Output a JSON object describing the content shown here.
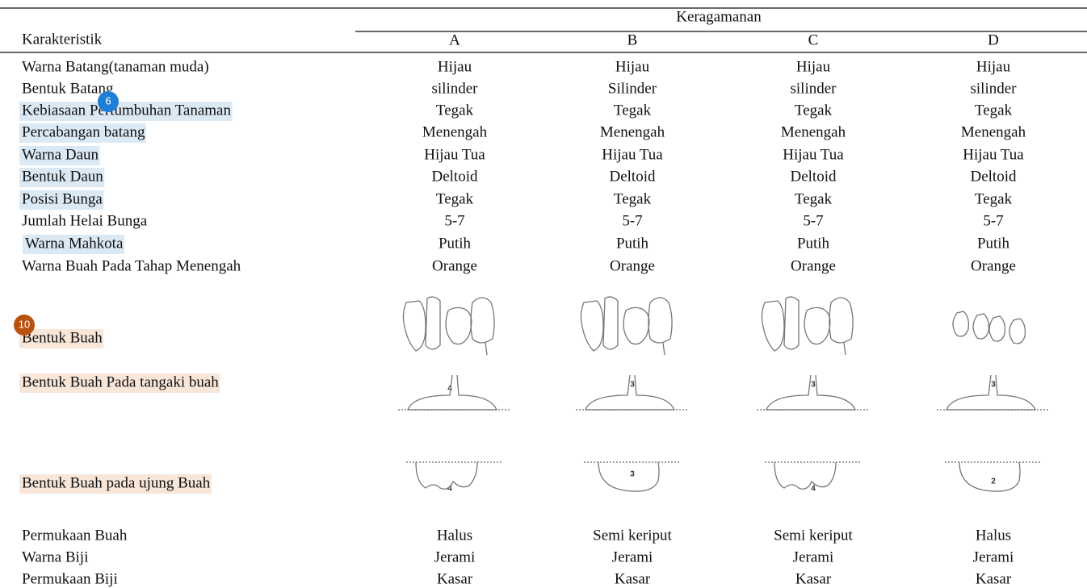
{
  "header": {
    "group": "Keragamanan",
    "label": "Karakteristik",
    "columns": [
      "A",
      "B",
      "C",
      "D"
    ]
  },
  "table": {
    "rows": [
      {
        "label": "Warna Batang(tanaman muda)",
        "cells": [
          "Hijau",
          "Hijau",
          "Hijau",
          "Hijau"
        ]
      },
      {
        "label": "Bentuk Batang",
        "cells": [
          "silinder",
          "Silinder",
          "silinder",
          "silinder"
        ]
      },
      {
        "label": "Kebiasaan Pertumbuhan Tanaman",
        "cells": [
          "Tegak",
          "Tegak",
          "Tegak",
          "Tegak"
        ]
      },
      {
        "label": "Percabangan batang",
        "cells": [
          "Menengah",
          "Menengah",
          "Menengah",
          "Menengah"
        ]
      },
      {
        "label": "Warna Daun",
        "cells": [
          "Hijau Tua",
          "Hijau Tua",
          "Hijau Tua",
          "Hijau Tua"
        ]
      },
      {
        "label": "Bentuk Daun",
        "cells": [
          "Deltoid",
          "Deltoid",
          "Deltoid",
          "Deltoid"
        ]
      },
      {
        "label": "Posisi Bunga",
        "cells": [
          "Tegak",
          "Tegak",
          "Tegak",
          "Tegak"
        ]
      },
      {
        "label": "Jumlah Helai Bunga",
        "cells": [
          "5-7",
          "5-7",
          "5-7",
          "5-7"
        ]
      },
      {
        "label": "Warna Mahkota",
        "cells": [
          "Putih",
          "Putih",
          "Putih",
          "Putih"
        ]
      },
      {
        "label": "Warna Buah Pada Tahap Menengah",
        "cells": [
          "Orange",
          "Orange",
          "Orange",
          "Orange"
        ]
      },
      {
        "label": "Bentuk Buah"
      },
      {
        "label": "Bentuk Buah Pada tangaki buah",
        "scores": [
          4,
          3,
          3,
          3
        ]
      },
      {
        "label": "Bentuk Buah pada ujung Buah",
        "scores": [
          4,
          3,
          4,
          2
        ]
      },
      {
        "label": "Permukaan Buah",
        "cells": [
          "Halus",
          "Semi keriput",
          "Semi keriput",
          "Halus"
        ]
      },
      {
        "label": "Warna Biji",
        "cells": [
          "Jerami",
          "Jerami",
          "Jerami",
          "Jerami"
        ]
      },
      {
        "label": "Permukaan Biji",
        "cells": [
          "Kasar",
          "Kasar",
          "Kasar",
          "Kasar"
        ]
      }
    ]
  },
  "annotations": [
    {
      "label": "6"
    },
    {
      "label": "10"
    }
  ]
}
